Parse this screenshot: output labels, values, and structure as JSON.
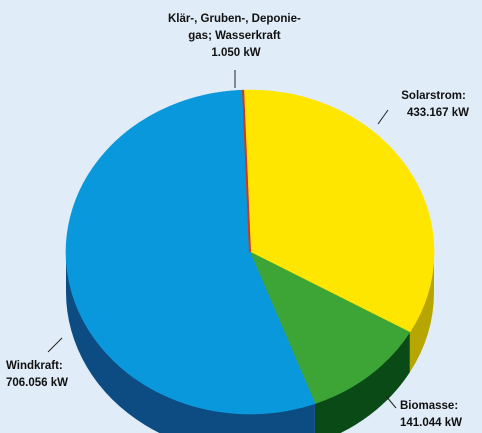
{
  "chart_data": {
    "type": "pie",
    "unit": "kW",
    "slices": [
      {
        "name": "Solarstrom",
        "label_lines": [
          "Solarstrom:",
          "433.167 kW"
        ],
        "value": 433167,
        "color": "#ffe600",
        "side_color": "#b8a600"
      },
      {
        "name": "Biomasse",
        "label_lines": [
          "Biomasse:",
          "141.044 kW"
        ],
        "value": 141044,
        "color": "#3ca535",
        "side_color": "#0a4a16"
      },
      {
        "name": "Windkraft",
        "label_lines": [
          "Windkraft:",
          "706.056 kW"
        ],
        "value": 706056,
        "color": "#0a98dc",
        "side_color": "#0d4c82"
      },
      {
        "name": "Klär-, Gruben-, Deponiegas; Wasserkraft",
        "label_lines": [
          "Klär-, Gruben-, Deponie-",
          "gas; Wasserkraft",
          "1.050 kW"
        ],
        "value": 1050,
        "color": "#e8541e",
        "side_color": "#8a2a0a"
      }
    ],
    "background": "#e0ecf7"
  }
}
